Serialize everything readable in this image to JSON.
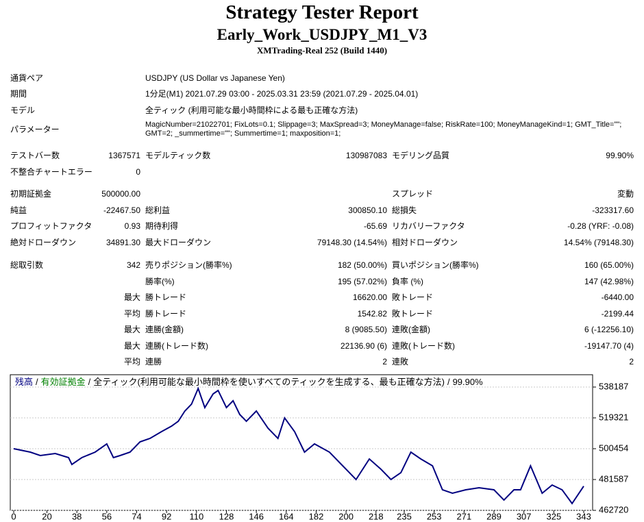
{
  "header": {
    "title": "Strategy Tester Report",
    "subtitle": "Early_Work_USDJPY_M1_V3",
    "server": "XMTrading-Real 252 (Build 1440)"
  },
  "info": [
    [
      "通貨ペア",
      "USDJPY (US Dollar vs Japanese Yen)"
    ],
    [
      "期間",
      "1分足(M1) 2021.07.29 03:00 - 2025.03.31 23:59 (2021.07.29 - 2025.04.01)"
    ],
    [
      "モデル",
      "全ティック (利用可能な最小時間枠による最も正確な方法)"
    ],
    [
      "パラメーター",
      "MagicNumber=21022701; FixLots=0.1; Slippage=3; MaxSpread=3; MoneyManage=false; RiskRate=100; MoneyManageKind=1; GMT_Title=\"\"; GMT=2; _summertime=\"\"; Summertime=1; maxposition=1;"
    ]
  ],
  "stats": [
    [
      [
        "テストバー数",
        "1367571",
        "モデルティック数",
        "130987083",
        "モデリング品質",
        "99.90%"
      ],
      [
        "不整合チャートエラー",
        "0",
        null,
        null,
        null,
        null
      ]
    ],
    [
      [
        "初期証拠金",
        "500000.00",
        null,
        null,
        "スプレッド",
        "変動"
      ],
      [
        "純益",
        "-22467.50",
        "総利益",
        "300850.10",
        "総損失",
        "-323317.60"
      ],
      [
        "プロフィットファクタ",
        "0.93",
        "期待利得",
        "-65.69",
        "リカバリーファクタ",
        "-0.28 (YRF: -0.08)"
      ],
      [
        "絶対ドローダウン",
        "34891.30",
        "最大ドローダウン",
        "79148.30 (14.54%)",
        "相対ドローダウン",
        "14.54% (79148.30)"
      ]
    ],
    [
      [
        "総取引数",
        "342",
        "売りポジション(勝率%)",
        "182 (50.00%)",
        "買いポジション(勝率%)",
        "160 (65.00%)"
      ],
      [
        null,
        null,
        "勝率(%)",
        "195 (57.02%)",
        "負率 (%)",
        "147 (42.98%)"
      ],
      [
        null,
        "最大",
        "勝トレード",
        "16620.00",
        "敗トレード",
        "-6440.00"
      ],
      [
        null,
        "平均",
        "勝トレード",
        "1542.82",
        "敗トレード",
        "-2199.44"
      ],
      [
        null,
        "最大",
        "連勝(金額)",
        "8 (9085.50)",
        "連敗(金額)",
        "6 (-12256.10)"
      ],
      [
        null,
        "最大",
        "連勝(トレード数)",
        "22136.90 (6)",
        "連敗(トレード数)",
        "-19147.70 (4)"
      ],
      [
        null,
        "平均",
        "連勝",
        "2",
        "連敗",
        "2"
      ]
    ]
  ],
  "chart_data": {
    "type": "line",
    "legend": {
      "separator": "/",
      "equity": "有効証拠金",
      "equity_color": "#008000",
      "model": "全ティック(利用可能な最小時間枠を使いすべてのティックを生成する、最も正確な方法)",
      "quality": "99.90%"
    },
    "x": [
      0,
      10,
      16,
      25,
      33,
      35,
      41,
      49,
      56,
      60,
      64,
      70,
      76,
      82,
      89,
      95,
      99,
      103,
      107,
      111,
      115,
      120,
      123,
      128,
      132,
      136,
      140,
      146,
      153,
      159,
      163,
      169,
      175,
      181,
      190,
      198,
      206,
      214,
      221,
      227,
      233,
      239,
      245,
      252,
      258,
      264,
      272,
      280,
      289,
      295,
      301,
      305,
      311,
      318,
      324,
      330,
      336,
      343
    ],
    "series": [
      {
        "name": "残高",
        "color": "#000080",
        "values": [
          500454,
          498358,
          496262,
          497519,
          495004,
          490811,
          495004,
          498358,
          503389,
          495004,
          496262,
          498358,
          504647,
          506743,
          510936,
          514290,
          517225,
          523514,
          527707,
          537350,
          525611,
          533996,
          536092,
          525611,
          529803,
          521418,
          517225,
          523514,
          513032,
          506743,
          519321,
          510936,
          498358,
          503389,
          498358,
          489973,
          481587,
          494165,
          487876,
          481587,
          485780,
          498358,
          494165,
          489973,
          475298,
          473202,
          475298,
          476556,
          475298,
          469009,
          475298,
          475298,
          489973,
          473202,
          478233,
          475298,
          466913,
          477533
        ]
      }
    ],
    "xlim": [
      0,
      343
    ],
    "ylim": [
      462720,
      545734
    ],
    "xticks": [
      0,
      20,
      38,
      56,
      74,
      92,
      110,
      128,
      146,
      164,
      182,
      200,
      218,
      235,
      253,
      271,
      289,
      307,
      325,
      343
    ],
    "yticks": [
      462720,
      481587,
      500454,
      519321,
      538187
    ],
    "grid": true
  }
}
